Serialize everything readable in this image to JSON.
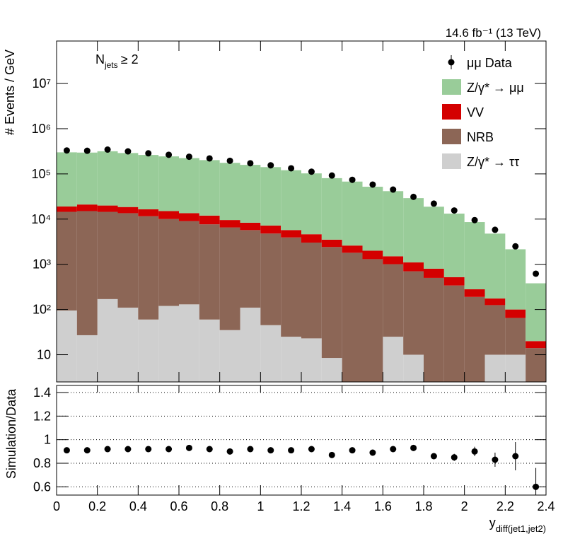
{
  "chart_data": [
    {
      "type": "stacked-histogram",
      "ylabel": "# Events / GeV",
      "annotation": "14.6 fb⁻¹ (13 TeV)",
      "selection": {
        "symbol": "N",
        "subscript": "jets",
        "condition": "≥ 2"
      },
      "bins": [
        0,
        0.1,
        0.2,
        0.3,
        0.4,
        0.5,
        0.6,
        0.7,
        0.8,
        0.9,
        1,
        1.1,
        1.2,
        1.3,
        1.4,
        1.5,
        1.6,
        1.7,
        1.8,
        1.9,
        2,
        2.1,
        2.2,
        2.3,
        2.4
      ],
      "xlim": [
        0,
        2.4
      ],
      "ylim": [
        2.5,
        87000000
      ],
      "log_y": true,
      "yticks": [
        10,
        {
          "value": 100,
          "label": "10²"
        },
        {
          "value": 1000,
          "label": "10³"
        },
        {
          "value": 10000,
          "label": "10⁴"
        },
        {
          "value": 100000,
          "label": "10⁵"
        },
        {
          "value": 1000000,
          "label": "10⁶"
        },
        {
          "value": 10000000,
          "label": "10⁷"
        }
      ],
      "legend": "top-right",
      "series": [
        {
          "name": "μμ Data",
          "color": "#000000",
          "marker": "point",
          "values": [
            330000,
            325000,
            345000,
            315000,
            285000,
            265000,
            240000,
            220000,
            195000,
            172000,
            155000,
            133000,
            112000,
            92000,
            74000,
            58000,
            45000,
            31000,
            22000,
            15500,
            9500,
            5800,
            2500,
            620
          ]
        },
        {
          "name": "Z/γ* → μμ",
          "color": "#99cc99",
          "values": [
            281000,
            275000,
            297000,
            271000,
            246000,
            229000,
            210000,
            190000,
            166000,
            150000,
            134000,
            115000,
            98000,
            77000,
            65000,
            50000,
            40000,
            28000,
            18000,
            12700,
            8300,
            4600,
            2050,
            360
          ]
        },
        {
          "name": "VV",
          "color": "#d40000",
          "values": [
            4500,
            6000,
            5500,
            5000,
            4900,
            5000,
            4500,
            4300,
            3000,
            2600,
            2400,
            1800,
            1600,
            1100,
            800,
            700,
            500,
            400,
            300,
            180,
            90,
            50,
            35,
            6
          ]
        },
        {
          "name": "NRB",
          "color": "#8c6656",
          "values": [
            14400,
            15000,
            14300,
            13400,
            11500,
            9900,
            8900,
            7600,
            6500,
            5600,
            4750,
            3900,
            3000,
            2400,
            1800,
            1300,
            980,
            690,
            500,
            340,
            190,
            115,
            55,
            14
          ]
        },
        {
          "name": "Z/γ* → ττ",
          "color": "#cfcfcf",
          "values": [
            95,
            27,
            170,
            110,
            60,
            120,
            130,
            60,
            35,
            110,
            45,
            25,
            23,
            8.5,
            0,
            0,
            25,
            10,
            0,
            0,
            0,
            10,
            10,
            0
          ]
        }
      ]
    },
    {
      "type": "ratio",
      "ylabel": "Simulation/Data",
      "xlabel": {
        "symbol": "y",
        "subscript": "diff(jet1,jet2)"
      },
      "values": [
        0.91,
        0.91,
        0.92,
        0.92,
        0.92,
        0.92,
        0.93,
        0.92,
        0.9,
        0.92,
        0.91,
        0.91,
        0.92,
        0.87,
        0.91,
        0.89,
        0.92,
        0.93,
        0.86,
        0.85,
        0.9,
        0.83,
        0.86,
        0.6
      ],
      "errors": [
        0.005,
        0.005,
        0.005,
        0.005,
        0.005,
        0.005,
        0.005,
        0.006,
        0.007,
        0.007,
        0.008,
        0.008,
        0.009,
        0.01,
        0.01,
        0.012,
        0.014,
        0.02,
        0.025,
        0.03,
        0.04,
        0.06,
        0.12,
        0.16
      ],
      "color": "#000000",
      "xlim": [
        0,
        2.4
      ],
      "xticks": [
        0,
        0.2,
        0.4,
        0.6,
        0.8,
        1,
        1.2,
        1.4,
        1.6,
        1.8,
        2,
        2.2,
        2.4
      ],
      "ylim": [
        0.53,
        1.46
      ],
      "yticks": [
        0.6,
        0.8,
        1,
        1.2,
        1.4
      ],
      "grid": true
    }
  ]
}
